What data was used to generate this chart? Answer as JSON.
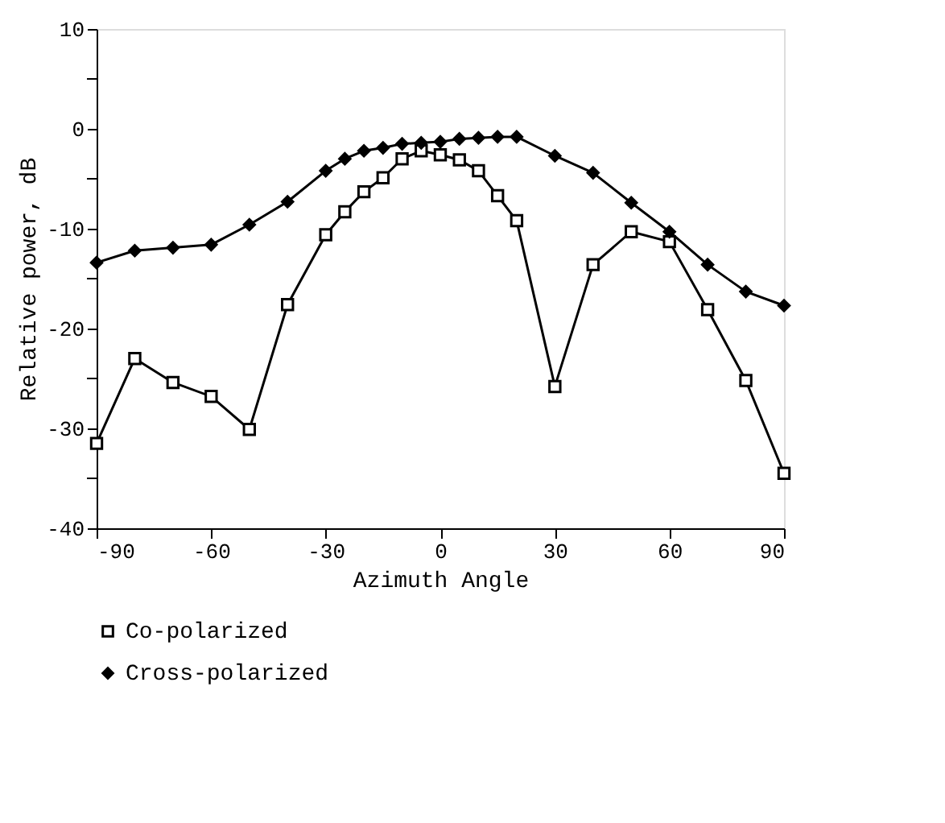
{
  "chart_data": {
    "type": "line",
    "xlabel": "Azimuth Angle",
    "ylabel": "Relative power, dB",
    "xlim": [
      -90,
      90
    ],
    "xticks": [
      -90,
      -60,
      -30,
      0,
      30,
      60,
      90
    ],
    "ylim": [
      -40,
      10
    ],
    "yticks": [
      -40,
      {
        "value": -35,
        "label": null
      },
      -30,
      {
        "value": -25,
        "label": null
      },
      -20,
      {
        "value": -15,
        "label": null
      },
      -10,
      {
        "value": -5,
        "label": null
      },
      0,
      {
        "value": 5,
        "label": null
      },
      10
    ],
    "grid": false,
    "legend": "bottom",
    "line_style": "solid",
    "series": [
      {
        "name": "Co-polarized",
        "color": "#000000",
        "marker": "square",
        "x": [
          -90,
          -80,
          -70,
          -60,
          -50,
          -40,
          -30,
          -25,
          -20,
          -15,
          -10,
          -5,
          0,
          5,
          10,
          15,
          20,
          30,
          40,
          50,
          60,
          70,
          80,
          90
        ],
        "values": [
          -31.5,
          -23.0,
          -25.4,
          -26.8,
          -30.1,
          -17.6,
          -10.6,
          -8.3,
          -6.3,
          -4.9,
          -3.0,
          -2.2,
          -2.6,
          -3.1,
          -4.2,
          -6.7,
          -9.2,
          -25.8,
          -13.6,
          -10.3,
          -11.3,
          -18.1,
          -25.2,
          -34.5
        ]
      },
      {
        "name": "Cross-polarized",
        "color": "#000000",
        "marker": "diamond",
        "x": [
          -90,
          -80,
          -70,
          -60,
          -50,
          -40,
          -30,
          -25,
          -20,
          -15,
          -10,
          -5,
          0,
          5,
          10,
          15,
          20,
          30,
          40,
          50,
          60,
          70,
          80,
          90
        ],
        "values": [
          -13.4,
          -12.2,
          -11.9,
          -11.6,
          -9.6,
          -7.3,
          -4.2,
          -3.0,
          -2.2,
          -1.9,
          -1.5,
          -1.4,
          -1.3,
          -1.0,
          -0.9,
          -0.8,
          -0.8,
          -2.7,
          -4.4,
          -7.4,
          -10.3,
          -13.6,
          -16.3,
          -17.7
        ]
      }
    ]
  }
}
